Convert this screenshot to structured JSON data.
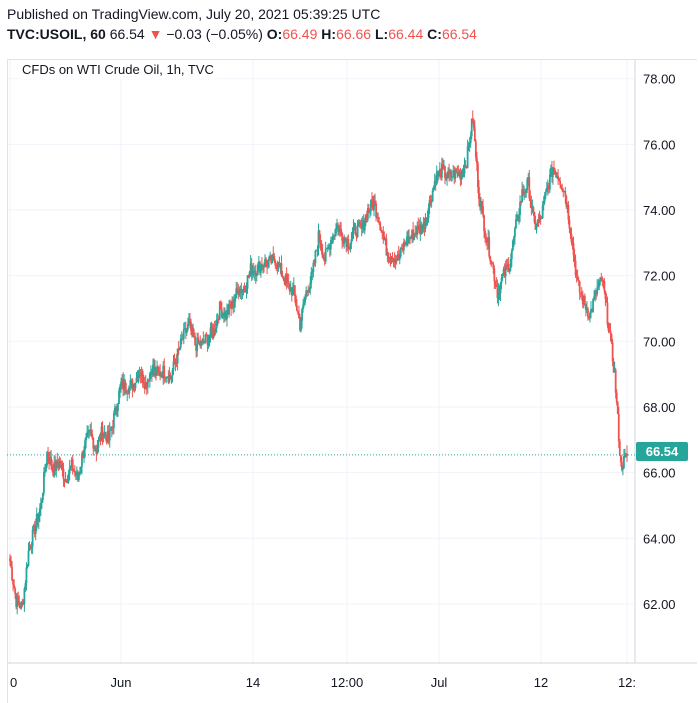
{
  "header": {
    "published": "Published on TradingView.com, July 20, 2021 05:39:25 UTC",
    "symbol": "TVC:USOIL, 60",
    "last": "66.54",
    "change": "−0.03 (−0.05%)",
    "o_label": "O:",
    "o_value": "66.49",
    "h_label": "H:",
    "h_value": "66.66",
    "l_label": "L:",
    "l_value": "66.44",
    "c_label": "C:",
    "c_value": "66.54"
  },
  "chart_data": {
    "type": "candlestick",
    "title": "CFDs on WTI Crude Oil, 1h, TVC",
    "ylim": [
      60.2,
      78.6
    ],
    "y_ticks": [
      "78.00",
      "76.00",
      "74.00",
      "72.00",
      "70.00",
      "68.00",
      "66.00",
      "64.00",
      "62.00"
    ],
    "x_ticks": [
      "0",
      "Jun",
      "14",
      "12:00",
      "Jul",
      "12",
      "12:"
    ],
    "last_price": "66.54",
    "last_price_value": 66.54,
    "colors": {
      "up": "#26a69a",
      "down": "#ef5350",
      "grid": "#f0f3fa",
      "axis": "#131722"
    },
    "grid": true,
    "series": [
      63.3,
      62.1,
      61.9,
      63.6,
      64.3,
      65.0,
      66.6,
      66.1,
      66.3,
      65.8,
      66.2,
      65.8,
      66.8,
      67.2,
      66.7,
      67.3,
      67.0,
      67.8,
      68.7,
      68.6,
      68.7,
      69.1,
      68.7,
      69.2,
      69.0,
      69.1,
      68.9,
      69.5,
      70.1,
      70.5,
      69.9,
      69.9,
      70.1,
      70.3,
      71.0,
      70.8,
      71.1,
      71.6,
      71.6,
      72.2,
      72.2,
      72.4,
      72.4,
      72.5,
      72.1,
      71.7,
      71.5,
      70.5,
      71.5,
      72.0,
      73.2,
      72.5,
      73.1,
      73.5,
      73.2,
      73.0,
      73.4,
      73.4,
      74.0,
      74.2,
      73.6,
      72.8,
      72.6,
      72.5,
      73.0,
      73.2,
      73.4,
      73.5,
      74.2,
      75.0,
      75.2,
      75.0,
      75.1,
      75.1,
      75.5,
      76.8,
      74.5,
      73.4,
      72.5,
      71.5,
      72.0,
      72.4,
      73.5,
      74.5,
      74.8,
      73.5,
      73.7,
      74.6,
      75.3,
      75.0,
      74.5,
      73.2,
      71.7,
      71.2,
      70.8,
      71.5,
      71.9,
      70.5,
      69.0,
      66.2,
      66.5
    ]
  }
}
